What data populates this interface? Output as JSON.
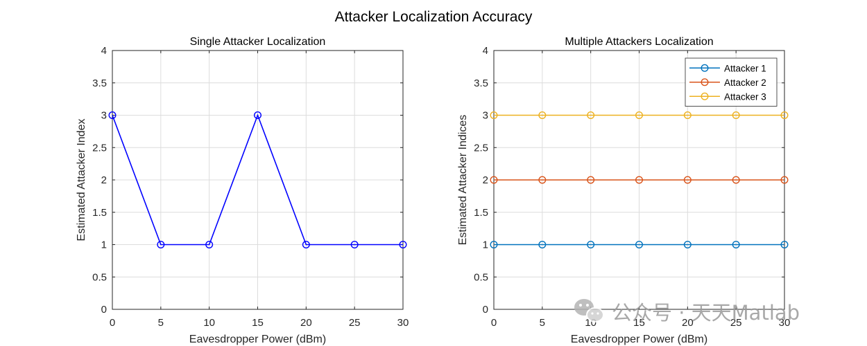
{
  "figure": {
    "suptitle": "Attacker Localization Accuracy"
  },
  "watermark": {
    "text": "公众号 · 天天Matlab",
    "icon": "wechat-icon"
  },
  "chart_data": [
    {
      "type": "line",
      "title": "Single Attacker Localization",
      "xlabel": "Eavesdropper Power (dBm)",
      "ylabel": "Estimated Attacker Index",
      "xlim": [
        0,
        30
      ],
      "ylim": [
        0,
        4
      ],
      "xticks": [
        0,
        5,
        10,
        15,
        20,
        25,
        30
      ],
      "xtick_labels": [
        "0",
        "5",
        "10",
        "15",
        "20",
        "25",
        "30"
      ],
      "yticks": [
        0,
        0.5,
        1,
        1.5,
        2,
        2.5,
        3,
        3.5,
        4
      ],
      "ytick_labels": [
        "0",
        "0.5",
        "1",
        "1.5",
        "2",
        "2.5",
        "3",
        "3.5",
        "4"
      ],
      "grid": true,
      "legend": null,
      "x": [
        0,
        5,
        10,
        15,
        20,
        25,
        30
      ],
      "series": [
        {
          "values": [
            3,
            1,
            1,
            3,
            1,
            1,
            1
          ],
          "color": "#0000ff",
          "marker": "circle"
        }
      ]
    },
    {
      "type": "line",
      "title": "Multiple Attackers Localization",
      "xlabel": "Eavesdropper Power (dBm)",
      "ylabel": "Estimated Attacker Indices",
      "xlim": [
        0,
        30
      ],
      "ylim": [
        0,
        4
      ],
      "xticks": [
        0,
        5,
        10,
        15,
        20,
        25,
        30
      ],
      "xtick_labels": [
        "0",
        "5",
        "10",
        "15",
        "20",
        "25",
        "30"
      ],
      "yticks": [
        0,
        0.5,
        1,
        1.5,
        2,
        2.5,
        3,
        3.5,
        4
      ],
      "ytick_labels": [
        "0",
        "0.5",
        "1",
        "1.5",
        "2",
        "2.5",
        "3",
        "3.5",
        "4"
      ],
      "grid": true,
      "legend": "top-right",
      "x": [
        0,
        5,
        10,
        15,
        20,
        25,
        30
      ],
      "series": [
        {
          "name": "Attacker 1",
          "values": [
            1,
            1,
            1,
            1,
            1,
            1,
            1
          ],
          "color": "#0072bd",
          "marker": "circle"
        },
        {
          "name": "Attacker 2",
          "values": [
            2,
            2,
            2,
            2,
            2,
            2,
            2
          ],
          "color": "#d95319",
          "marker": "circle"
        },
        {
          "name": "Attacker 3",
          "values": [
            3,
            3,
            3,
            3,
            3,
            3,
            3
          ],
          "color": "#edb120",
          "marker": "circle"
        }
      ]
    }
  ]
}
